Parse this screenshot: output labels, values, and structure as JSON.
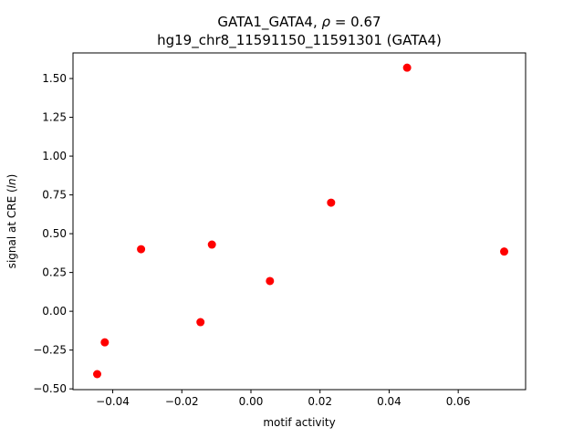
{
  "chart_data": {
    "type": "scatter",
    "title_prefix": "GATA1_GATA4, ",
    "title_rho_symbol": "ρ",
    "title_rho_value": " = 0.67",
    "subtitle": "hg19_chr8_11591150_11591301 (GATA4)",
    "xlabel": "motif activity",
    "ylabel_prefix": "signal at CRE (",
    "ylabel_italic": "ln",
    "ylabel_suffix": ")",
    "xlim": [
      -0.0515,
      0.0795
    ],
    "ylim": [
      -0.505,
      1.665
    ],
    "xticks": [
      -0.04,
      -0.02,
      0.0,
      0.02,
      0.04,
      0.06
    ],
    "xtick_labels": [
      "−0.04",
      "−0.02",
      "0.00",
      "0.02",
      "0.04",
      "0.06"
    ],
    "yticks": [
      -0.5,
      -0.25,
      0.0,
      0.25,
      0.5,
      0.75,
      1.0,
      1.25,
      1.5
    ],
    "ytick_labels": [
      "−0.50",
      "−0.25",
      "0.00",
      "0.25",
      "0.50",
      "0.75",
      "1.00",
      "1.25",
      "1.50"
    ],
    "marker_color": "#ff0000",
    "points": [
      {
        "x": -0.0445,
        "y": -0.405
      },
      {
        "x": -0.0423,
        "y": -0.2
      },
      {
        "x": -0.0318,
        "y": 0.4
      },
      {
        "x": -0.0146,
        "y": -0.07
      },
      {
        "x": -0.0113,
        "y": 0.43
      },
      {
        "x": 0.0055,
        "y": 0.195
      },
      {
        "x": 0.0232,
        "y": 0.7
      },
      {
        "x": 0.0452,
        "y": 1.57
      },
      {
        "x": 0.0733,
        "y": 0.385
      }
    ],
    "grid": false,
    "legend": "none"
  }
}
